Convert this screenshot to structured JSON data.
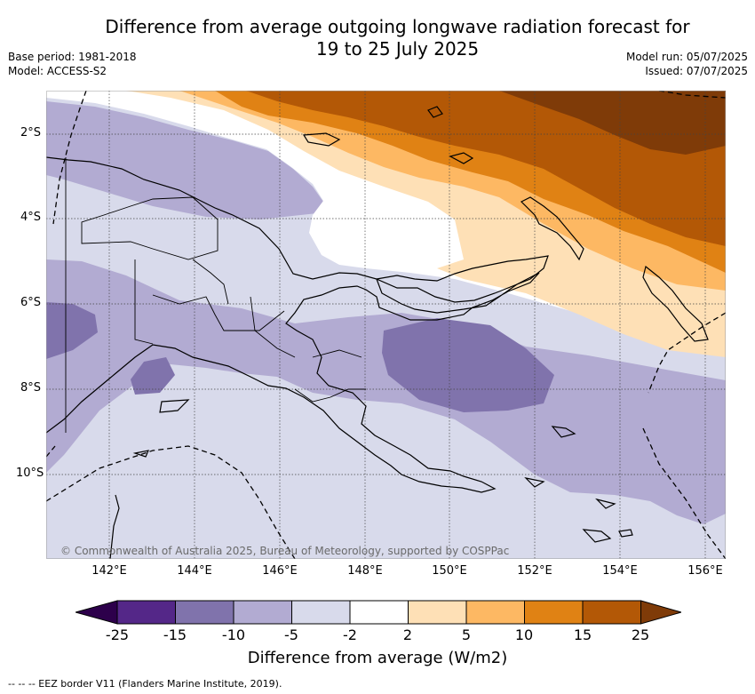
{
  "title_line1": "Difference from average outgoing longwave radiation forecast for",
  "title_line2": "19 to 25 July 2025",
  "base_period": "Base period: 1981-2018",
  "model": "Model: ACCESS-S2",
  "model_run": "Model run: 05/07/2025",
  "issued": "Issued: 07/07/2025",
  "lat_labels": [
    "2°S",
    "4°S",
    "6°S",
    "8°S",
    "10°S"
  ],
  "lon_labels": [
    "142°E",
    "144°E",
    "146°E",
    "148°E",
    "150°E",
    "152°E",
    "154°E",
    "156°E"
  ],
  "copyright": "© Commonwealth of Australia 2025, Bureau of Meteorology, supported by COSPPac",
  "colorbar": {
    "labels": [
      "-25",
      "-15",
      "-10",
      "-5",
      "-2",
      "2",
      "5",
      "10",
      "15",
      "25"
    ],
    "colors": [
      "#2d004b",
      "#542788",
      "#8073ac",
      "#b2abd2",
      "#d8daeb",
      "#ffffff",
      "#fee0b6",
      "#fdb863",
      "#e08214",
      "#b35806",
      "#7f3b08"
    ],
    "title": "Difference from average (W/m2)"
  },
  "footer": "--  --  -- EEZ border V11 (Flanders Marine Institute, 2019)."
}
